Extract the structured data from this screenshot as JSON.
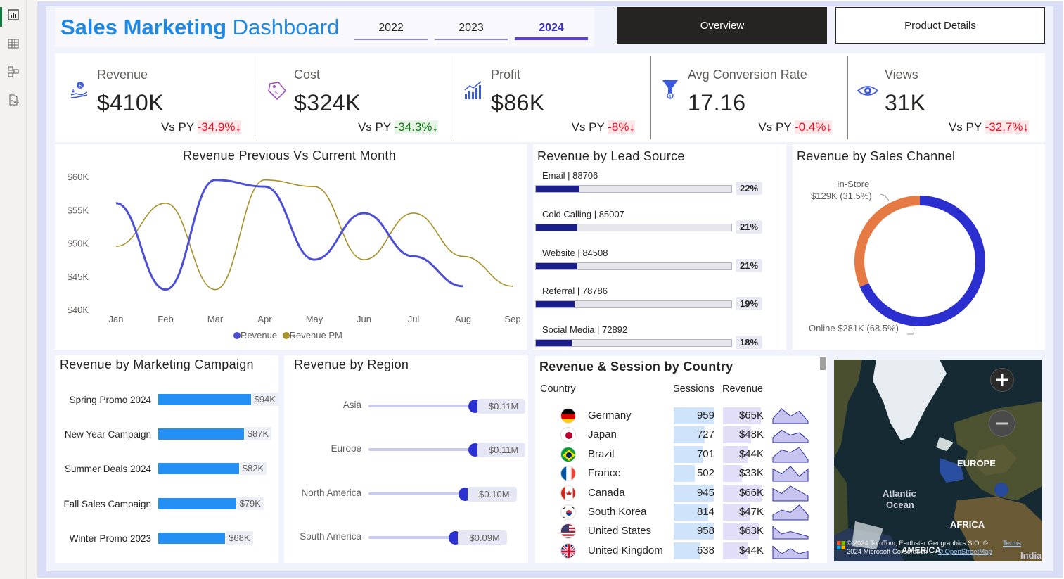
{
  "header": {
    "title_bold": "Sales Marketing",
    "title_light": "Dashboard"
  },
  "years": [
    {
      "label": "2022",
      "selected": false
    },
    {
      "label": "2023",
      "selected": false
    },
    {
      "label": "2024",
      "selected": true
    }
  ],
  "nav": {
    "overview": "Overview",
    "product_details": "Product Details"
  },
  "rail": [
    "report-view-icon",
    "table-view-icon",
    "model-view-icon",
    "dax-query-icon"
  ],
  "kpis": [
    {
      "label": "Revenue",
      "value": "$410K",
      "vs": "Vs PY",
      "delta": "-34.9%↓",
      "delta_type": "neg",
      "icon": "money-hand-icon"
    },
    {
      "label": "Cost",
      "value": "$324K",
      "vs": "Vs PY",
      "delta": "-34.3%↓",
      "delta_type": "pos",
      "icon": "price-tag-icon"
    },
    {
      "label": "Profit",
      "value": "$86K",
      "vs": "Vs PY",
      "delta": "-8%↓",
      "delta_type": "neg",
      "icon": "growth-chart-icon"
    },
    {
      "label": "Avg Conversion Rate",
      "value": "17.16",
      "vs": "Vs PY",
      "delta": "-0.4%↓",
      "delta_type": "neg",
      "icon": "funnel-icon"
    },
    {
      "label": "Views",
      "value": "31K",
      "vs": "Vs PY",
      "delta": "-32.7%↓",
      "delta_type": "neg",
      "icon": "eye-icon"
    }
  ],
  "line_chart": {
    "title": "Revenue Previous Vs Current Month",
    "legend": [
      "Revenue",
      "Revenue PM"
    ]
  },
  "lead_source": {
    "title": "Revenue by Lead Source"
  },
  "sales_channel": {
    "title": "Revenue by Sales Channel",
    "label_instore_1": "In-Store",
    "label_instore_2": "$129K (31.5%)",
    "label_online": "Online $281K (68.5%)"
  },
  "campaign": {
    "title": "Revenue by Marketing Campaign"
  },
  "region": {
    "title": "Revenue by Region"
  },
  "country_table": {
    "title": "Revenue & Session by Country",
    "headers": {
      "country": "Country",
      "sessions": "Sessions",
      "revenue": "Revenue"
    },
    "rows": [
      {
        "country": "Germany",
        "sessions": "959",
        "revenue": "$65K",
        "flag": "germany-flag-icon",
        "spark": [
          2,
          6,
          3,
          5,
          1
        ]
      },
      {
        "country": "Japan",
        "sessions": "727",
        "revenue": "$48K",
        "flag": "japan-flag-icon",
        "spark": [
          2,
          5,
          3,
          4,
          1
        ]
      },
      {
        "country": "Brazil",
        "sessions": "701",
        "revenue": "$44K",
        "flag": "brazil-flag-icon",
        "spark": [
          2,
          5,
          4,
          6,
          1
        ]
      },
      {
        "country": "France",
        "sessions": "502",
        "revenue": "$33K",
        "flag": "france-flag-icon",
        "spark": [
          5,
          3,
          6,
          2,
          5
        ]
      },
      {
        "country": "Canada",
        "sessions": "945",
        "revenue": "$66K",
        "flag": "canada-flag-icon",
        "spark": [
          5,
          3,
          6,
          4,
          2
        ]
      },
      {
        "country": "South Korea",
        "sessions": "814",
        "revenue": "$47K",
        "flag": "south-korea-flag-icon",
        "spark": [
          2,
          4,
          3,
          6,
          2
        ]
      },
      {
        "country": "United States",
        "sessions": "958",
        "revenue": "$63K",
        "flag": "usa-flag-icon",
        "spark": [
          5,
          2,
          3,
          2,
          1
        ]
      },
      {
        "country": "United Kingdom",
        "sessions": "638",
        "revenue": "$44K",
        "flag": "uk-flag-icon",
        "spark": [
          5,
          2,
          4,
          2,
          3
        ]
      }
    ]
  },
  "map": {
    "label_europe": "EUROPE",
    "label_atlantic_1": "Atlantic",
    "label_atlantic_2": "Ocean",
    "label_africa": "AFRICA",
    "label_india": "India",
    "label_america": "AMERICA",
    "copyright_1": "© 2024 TomTom, Earthstar Geographics SIO, ©",
    "copyright_2": "2024 Microsoft Corporation",
    "osm": "© OpenStreetMap",
    "terms": "Terms"
  },
  "colors": {
    "accent": "#1e88e5",
    "revenue_line": "#4b4fd6",
    "revenue_pm_line": "#a8912a",
    "online": "#2b2fd0",
    "instore": "#e57a44",
    "bar_blue": "#2590f4",
    "neg": "#e81123",
    "pos": "#107c10"
  },
  "chart_data": [
    {
      "type": "line",
      "title": "Revenue Previous Vs Current Month",
      "x": [
        "Jan",
        "Feb",
        "Mar",
        "Apr",
        "May",
        "Jun",
        "Jul",
        "Aug",
        "Sep"
      ],
      "ylim": [
        40000,
        60000
      ],
      "yticks": [
        "$60K",
        "$55K",
        "$50K",
        "$45K",
        "$40K"
      ],
      "yticks_values": [
        60000,
        55000,
        50000,
        45000,
        40000
      ],
      "series": [
        {
          "name": "Revenue",
          "values": [
            56000,
            43000,
            59500,
            58500,
            47500,
            54500,
            48000,
            43500,
            null
          ]
        },
        {
          "name": "Revenue PM",
          "values": [
            49500,
            56000,
            43000,
            59500,
            58500,
            47500,
            54500,
            48000,
            43500
          ]
        }
      ]
    },
    {
      "type": "bar",
      "title": "Revenue by Lead Source",
      "categories": [
        "Email",
        "Cold Calling",
        "Website",
        "Referral",
        "Social Media"
      ],
      "values": [
        88706,
        85007,
        84508,
        78786,
        72892
      ],
      "percents": [
        "22%",
        "21%",
        "21%",
        "19%",
        "18%"
      ],
      "labels": [
        "Email | 88706",
        "Cold Calling | 85007",
        "Website | 84508",
        "Referral | 78786",
        "Social Media | 72892"
      ]
    },
    {
      "type": "pie",
      "title": "Revenue by Sales Channel",
      "categories": [
        "Online",
        "In-Store"
      ],
      "values": [
        281,
        129
      ],
      "percents": [
        68.5,
        31.5
      ]
    },
    {
      "type": "bar",
      "title": "Revenue by Marketing Campaign",
      "categories": [
        "Spring Promo 2024",
        "New Year Campaign",
        "Summer Deals 2024",
        "Fall Sales Campaign",
        "Winter Promo 2023"
      ],
      "values": [
        94,
        87,
        82,
        79,
        68
      ],
      "labels": [
        "$94K",
        "$87K",
        "$82K",
        "$79K",
        "$68K"
      ]
    },
    {
      "type": "scatter",
      "title": "Revenue by Region",
      "categories": [
        "Asia",
        "Europe",
        "North America",
        "South America"
      ],
      "values": [
        0.11,
        0.11,
        0.1,
        0.09
      ],
      "labels": [
        "$0.11M",
        "$0.11M",
        "$0.10M",
        "$0.09M"
      ]
    }
  ]
}
